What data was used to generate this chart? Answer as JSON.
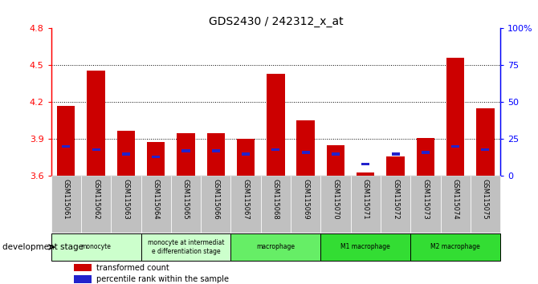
{
  "title": "GDS2430 / 242312_x_at",
  "samples": [
    "GSM115061",
    "GSM115062",
    "GSM115063",
    "GSM115064",
    "GSM115065",
    "GSM115066",
    "GSM115067",
    "GSM115068",
    "GSM115069",
    "GSM115070",
    "GSM115071",
    "GSM115072",
    "GSM115073",
    "GSM115074",
    "GSM115075"
  ],
  "red_values": [
    4.17,
    4.46,
    3.97,
    3.88,
    3.95,
    3.95,
    3.9,
    4.43,
    4.05,
    3.85,
    3.63,
    3.76,
    3.91,
    4.56,
    4.15
  ],
  "blue_percentile": [
    20,
    18,
    15,
    13,
    17,
    17,
    15,
    18,
    16,
    15,
    8,
    15,
    16,
    20,
    18
  ],
  "y_min": 3.6,
  "y_max": 4.8,
  "y_ticks": [
    3.6,
    3.9,
    4.2,
    4.5,
    4.8
  ],
  "y2_ticks": [
    0,
    25,
    50,
    75,
    100
  ],
  "bar_color_red": "#cc0000",
  "bar_color_blue": "#2222cc",
  "groups": [
    {
      "label": "monocyte",
      "start": 0,
      "end": 3,
      "color": "#ccffcc"
    },
    {
      "label": "monocyte at intermediat\ne differentiation stage",
      "start": 3,
      "end": 6,
      "color": "#ccffcc"
    },
    {
      "label": "macrophage",
      "start": 6,
      "end": 9,
      "color": "#66ee66"
    },
    {
      "label": "M1 macrophage",
      "start": 9,
      "end": 12,
      "color": "#33dd33"
    },
    {
      "label": "M2 macrophage",
      "start": 12,
      "end": 15,
      "color": "#33dd33"
    }
  ],
  "xlabel": "development stage",
  "legend_red": "transformed count",
  "legend_blue": "percentile rank within the sample",
  "tick_bg_color": "#bbbbbb"
}
